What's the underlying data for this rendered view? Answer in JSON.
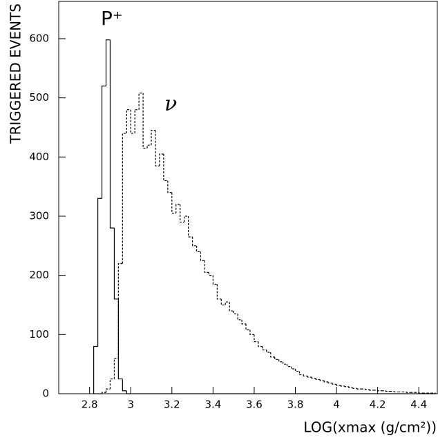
{
  "chart_data": {
    "type": "histogram",
    "xlabel": "LOG(xmax (g/cm²))",
    "ylabel": "TRIGGERED EVENTS",
    "annotations": [
      "P⁺",
      "ν"
    ],
    "xlim": [
      2.65,
      4.49
    ],
    "ylim": [
      0,
      663
    ],
    "xticks": [
      2.8,
      3,
      3.2,
      3.4,
      3.6,
      3.8,
      4,
      4.2,
      4.4
    ],
    "yticks": [
      0,
      100,
      200,
      300,
      400,
      500,
      600
    ],
    "bins": [
      2.82,
      2.84,
      2.86,
      2.88,
      2.9,
      2.92,
      2.94,
      2.96,
      2.98,
      3,
      3.02,
      3.04,
      3.06,
      3.08,
      3.1,
      3.12,
      3.14,
      3.16,
      3.18,
      3.2,
      3.22,
      3.24,
      3.26,
      3.28,
      3.3,
      3.32,
      3.34,
      3.36,
      3.38,
      3.4,
      3.42,
      3.44,
      3.46,
      3.48,
      3.5,
      3.52,
      3.54,
      3.56,
      3.58,
      3.6,
      3.62,
      3.64,
      3.66,
      3.68,
      3.7,
      3.72,
      3.74,
      3.76,
      3.78,
      3.8,
      3.82,
      3.84,
      3.86,
      3.88,
      3.9,
      3.92,
      3.94,
      3.96,
      3.98,
      4,
      4.02,
      4.04,
      4.06,
      4.08,
      4.1,
      4.12,
      4.14,
      4.16,
      4.18,
      4.2,
      4.22,
      4.24,
      4.26,
      4.28,
      4.3,
      4.32,
      4.34,
      4.36,
      4.38,
      4.4,
      4.42,
      4.44,
      4.46,
      4.48
    ],
    "series": [
      {
        "color": "#000000",
        "dashed": false,
        "values": [
          80,
          330,
          520,
          598,
          280,
          160,
          25,
          5,
          0,
          0,
          0,
          0,
          0,
          0,
          0,
          0,
          0,
          0,
          0,
          0,
          0,
          0,
          0,
          0,
          0,
          0,
          0,
          0,
          0,
          0,
          0,
          0,
          0,
          0,
          0,
          0,
          0,
          0,
          0,
          0,
          0,
          0,
          0,
          0,
          0,
          0,
          0,
          0,
          0,
          0,
          0,
          0,
          0,
          0,
          0,
          0,
          0,
          0,
          0,
          0,
          0,
          0,
          0,
          0,
          0,
          0,
          0,
          0,
          0,
          0,
          0,
          0,
          0,
          0,
          0,
          0,
          0,
          0,
          0,
          0,
          0,
          0,
          0
        ]
      },
      {
        "color": "#000000",
        "dashed": true,
        "values": [
          0,
          0,
          2,
          8,
          25,
          60,
          220,
          440,
          480,
          440,
          480,
          508,
          415,
          420,
          445,
          385,
          405,
          360,
          340,
          305,
          320,
          290,
          300,
          265,
          250,
          240,
          225,
          205,
          200,
          185,
          160,
          150,
          155,
          140,
          135,
          125,
          118,
          108,
          100,
          88,
          80,
          74,
          70,
          62,
          58,
          54,
          50,
          46,
          42,
          38,
          32,
          30,
          28,
          26,
          24,
          22,
          20,
          18,
          16,
          14,
          13,
          12,
          10,
          9,
          8,
          8,
          7,
          6,
          6,
          5,
          5,
          4,
          4,
          3,
          3,
          3,
          2,
          2,
          2,
          1,
          1,
          1,
          1
        ]
      }
    ]
  }
}
